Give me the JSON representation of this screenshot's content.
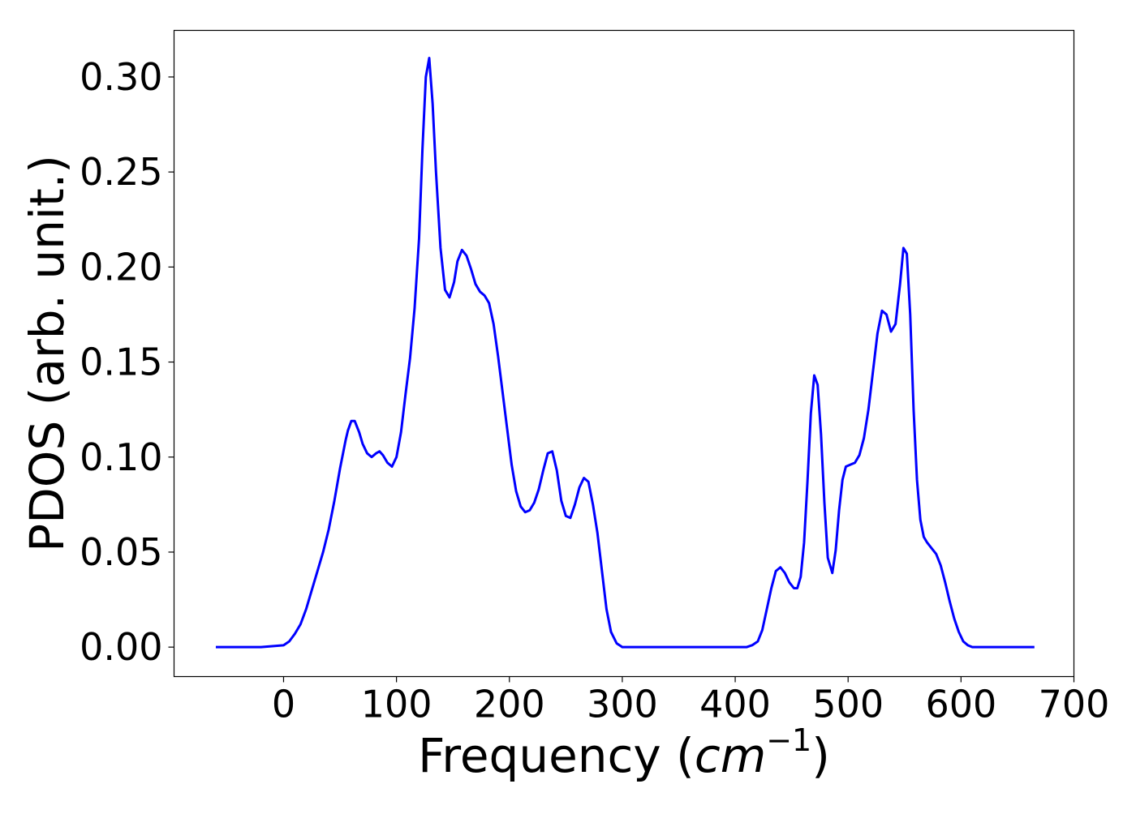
{
  "chart_data": {
    "type": "line",
    "title": "",
    "xlabel": "Frequency (",
    "xlabel_math_base": "cm",
    "xlabel_math_sup": "−1",
    "xlabel_close": ")",
    "ylabel": "PDOS (arb. unit.)",
    "xlim": [
      -97,
      700
    ],
    "ylim": [
      -0.0155,
      0.3245
    ],
    "xticks": [
      0,
      100,
      200,
      300,
      400,
      500,
      600,
      700
    ],
    "xtick_labels": [
      "0",
      "100",
      "200",
      "300",
      "400",
      "500",
      "600",
      "700"
    ],
    "yticks": [
      0.0,
      0.05,
      0.1,
      0.15,
      0.2,
      0.25,
      0.3
    ],
    "ytick_labels": [
      "0.00",
      "0.05",
      "0.10",
      "0.15",
      "0.20",
      "0.25",
      "0.30"
    ],
    "grid": false,
    "legend": "none",
    "series": [
      {
        "color": "#0000ff",
        "x": [
          -60,
          -40,
          -20,
          0,
          5,
          10,
          15,
          20,
          25,
          30,
          35,
          40,
          45,
          50,
          55,
          57,
          60,
          63,
          67,
          70,
          74,
          78,
          82,
          85,
          88,
          92,
          96,
          100,
          104,
          108,
          112,
          116,
          120,
          123,
          126,
          129,
          132,
          135,
          139,
          143,
          147,
          151,
          154,
          158,
          162,
          166,
          170,
          174,
          178,
          182,
          186,
          190,
          194,
          198,
          202,
          206,
          210,
          214,
          218,
          222,
          226,
          230,
          234,
          238,
          242,
          246,
          250,
          254,
          258,
          262,
          266,
          270,
          274,
          278,
          282,
          286,
          290,
          295,
          300,
          320,
          350,
          380,
          400,
          410,
          415,
          420,
          424,
          428,
          432,
          436,
          440,
          444,
          448,
          452,
          455,
          458,
          461,
          464,
          467,
          470,
          473,
          476,
          479,
          482,
          486,
          489,
          492,
          495,
          498,
          502,
          506,
          510,
          514,
          518,
          522,
          526,
          530,
          534,
          538,
          542,
          546,
          549,
          552,
          555,
          558,
          561,
          564,
          567,
          570,
          574,
          578,
          582,
          586,
          590,
          594,
          598,
          602,
          606,
          610,
          615,
          620,
          640,
          665
        ],
        "y": [
          0.0,
          0.0,
          0.0,
          0.001,
          0.003,
          0.007,
          0.012,
          0.02,
          0.03,
          0.04,
          0.05,
          0.062,
          0.077,
          0.094,
          0.109,
          0.114,
          0.119,
          0.119,
          0.113,
          0.107,
          0.102,
          0.1,
          0.102,
          0.103,
          0.101,
          0.097,
          0.095,
          0.1,
          0.113,
          0.133,
          0.152,
          0.178,
          0.215,
          0.262,
          0.3,
          0.31,
          0.286,
          0.25,
          0.21,
          0.188,
          0.184,
          0.192,
          0.203,
          0.209,
          0.206,
          0.199,
          0.191,
          0.187,
          0.185,
          0.181,
          0.17,
          0.153,
          0.134,
          0.115,
          0.096,
          0.082,
          0.074,
          0.071,
          0.072,
          0.076,
          0.083,
          0.093,
          0.102,
          0.103,
          0.093,
          0.077,
          0.069,
          0.068,
          0.075,
          0.084,
          0.089,
          0.087,
          0.075,
          0.06,
          0.04,
          0.02,
          0.008,
          0.002,
          0.0,
          0.0,
          0.0,
          0.0,
          0.0,
          0.0,
          0.001,
          0.003,
          0.009,
          0.02,
          0.031,
          0.04,
          0.042,
          0.039,
          0.034,
          0.031,
          0.031,
          0.037,
          0.055,
          0.087,
          0.123,
          0.143,
          0.138,
          0.112,
          0.076,
          0.047,
          0.039,
          0.051,
          0.072,
          0.088,
          0.095,
          0.096,
          0.097,
          0.101,
          0.11,
          0.125,
          0.145,
          0.165,
          0.177,
          0.175,
          0.166,
          0.17,
          0.191,
          0.21,
          0.207,
          0.175,
          0.125,
          0.088,
          0.067,
          0.058,
          0.055,
          0.052,
          0.049,
          0.043,
          0.034,
          0.024,
          0.015,
          0.008,
          0.003,
          0.001,
          0.0,
          0.0,
          0.0,
          0.0,
          0.0
        ]
      }
    ]
  }
}
